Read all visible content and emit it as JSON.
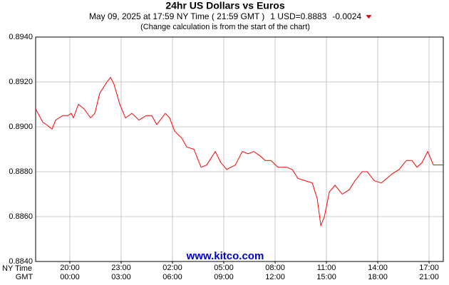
{
  "chart_data": {
    "type": "line",
    "title": "24hr US Dollars vs Euros",
    "date_line": "May 09, 2025 at 17:59 NY Time ( 21:59 GMT )",
    "price": "1 USD=0.8883",
    "change": "-0.0024",
    "note": "(Change calculation is from the start of the chart)",
    "watermark": "www.kitco.com",
    "x_axis_label": "NY Time",
    "x2_axis_label": "GMT",
    "color": "#ff0000",
    "grid": true,
    "xlim": [
      18,
      41.83
    ],
    "ylim": [
      0.884,
      0.894
    ],
    "yticks": [
      {
        "value": 0.884,
        "label": "0.8840"
      },
      {
        "value": 0.886,
        "label": "0.8860"
      },
      {
        "value": 0.888,
        "label": "0.8880"
      },
      {
        "value": 0.89,
        "label": "0.8900"
      },
      {
        "value": 0.892,
        "label": "0.8920"
      },
      {
        "value": 0.894,
        "label": "0.8940"
      }
    ],
    "xticks": [
      {
        "value": 20,
        "label": "20:00"
      },
      {
        "value": 23,
        "label": "23:00"
      },
      {
        "value": 26,
        "label": "02:00"
      },
      {
        "value": 29,
        "label": "05:00"
      },
      {
        "value": 32,
        "label": "08:00"
      },
      {
        "value": 35,
        "label": "11:00"
      },
      {
        "value": 38,
        "label": "14:00"
      },
      {
        "value": 41,
        "label": "17:00"
      }
    ],
    "x2ticks": [
      {
        "value": 20,
        "label": "00:00"
      },
      {
        "value": 23,
        "label": "03:00"
      },
      {
        "value": 26,
        "label": "06:00"
      },
      {
        "value": 29,
        "label": "09:00"
      },
      {
        "value": 32,
        "label": "12:00"
      },
      {
        "value": 35,
        "label": "15:00"
      },
      {
        "value": 38,
        "label": "18:00"
      },
      {
        "value": 41,
        "label": "21:00"
      }
    ],
    "x": [
      18,
      18.21,
      18.42,
      18.63,
      18.96,
      19.17,
      19.58,
      19.88,
      20.08,
      20.21,
      20.5,
      20.83,
      21.21,
      21.46,
      21.75,
      22.17,
      22.38,
      22.58,
      22.92,
      23.25,
      23.63,
      24.04,
      24.46,
      24.79,
      25.08,
      25.58,
      25.83,
      26.13,
      26.54,
      26.83,
      27.25,
      27.67,
      28,
      28.5,
      28.83,
      29.17,
      29.67,
      30.08,
      30.42,
      30.75,
      31.13,
      31.42,
      31.75,
      32.17,
      32.67,
      33,
      33.33,
      33.75,
      34.17,
      34.46,
      34.67,
      34.88,
      35.17,
      35.5,
      35.92,
      36.33,
      36.67,
      37.08,
      37.38,
      37.79,
      38.21,
      38.83,
      39.25,
      39.67,
      40,
      40.29,
      40.58,
      40.92,
      41.25,
      41.83
    ],
    "values": [
      0.8908,
      0.8905,
      0.8902,
      0.8901,
      0.8899,
      0.8903,
      0.8905,
      0.8905,
      0.8906,
      0.8904,
      0.891,
      0.8908,
      0.8904,
      0.8906,
      0.8915,
      0.892,
      0.8922,
      0.8919,
      0.891,
      0.8904,
      0.8906,
      0.8903,
      0.8905,
      0.8905,
      0.8901,
      0.8906,
      0.8904,
      0.8898,
      0.8895,
      0.8891,
      0.889,
      0.8882,
      0.8883,
      0.8889,
      0.8884,
      0.8881,
      0.8883,
      0.8889,
      0.8888,
      0.8889,
      0.8887,
      0.8885,
      0.8885,
      0.8882,
      0.8882,
      0.8881,
      0.8877,
      0.8876,
      0.8875,
      0.8868,
      0.8856,
      0.886,
      0.8871,
      0.8874,
      0.887,
      0.8872,
      0.8876,
      0.888,
      0.888,
      0.8876,
      0.8875,
      0.8879,
      0.8881,
      0.8885,
      0.8885,
      0.8882,
      0.8884,
      0.8889,
      0.8883,
      0.8883
    ]
  }
}
